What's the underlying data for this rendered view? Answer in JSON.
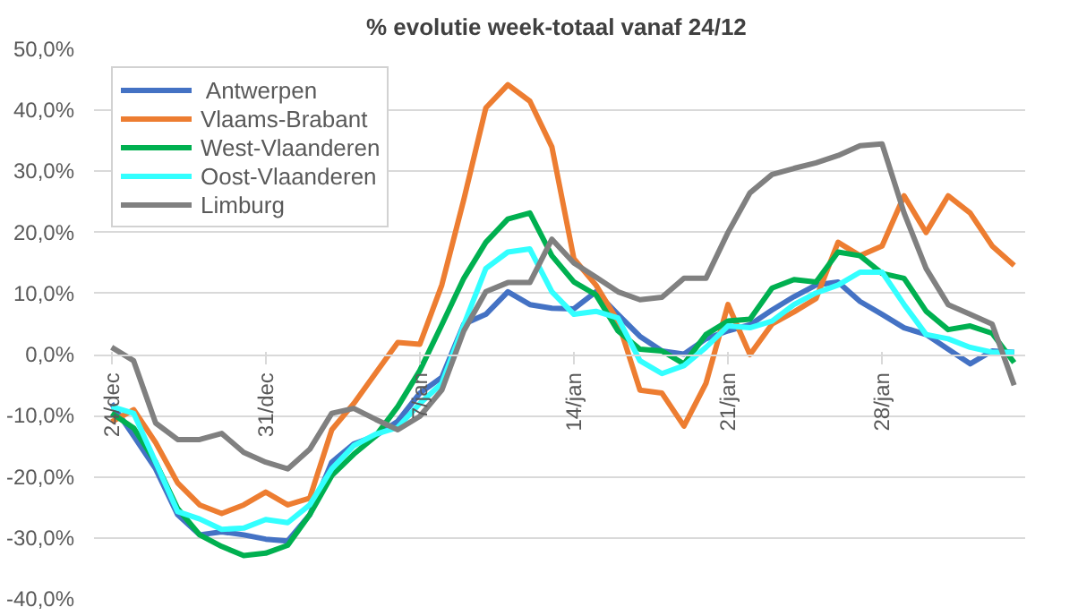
{
  "chart_data": {
    "type": "line",
    "title": "% evolutie week-totaal  vanaf 24/12",
    "categories": [
      "24/dec",
      null,
      null,
      null,
      null,
      null,
      null,
      "31/dec",
      null,
      null,
      null,
      null,
      null,
      null,
      "7/jan",
      null,
      null,
      null,
      null,
      null,
      null,
      "14/jan",
      null,
      null,
      null,
      null,
      null,
      null,
      "21/jan",
      null,
      null,
      null,
      null,
      null,
      null,
      "28/jan",
      null,
      null,
      null,
      null,
      null,
      null
    ],
    "ylim": [
      -40,
      50
    ],
    "yticks": [
      {
        "value": -40,
        "label": "-40,0%"
      },
      {
        "value": -30,
        "label": "-30,0%"
      },
      {
        "value": -20,
        "label": "-20,0%"
      },
      {
        "value": -10,
        "label": "-10,0%"
      },
      {
        "value": 0,
        "label": "0,0%"
      },
      {
        "value": 10,
        "label": "10,0%"
      },
      {
        "value": 20,
        "label": "20,0%"
      },
      {
        "value": 30,
        "label": "30,0%"
      },
      {
        "value": 40,
        "label": "40,0%"
      },
      {
        "value": 50,
        "label": "50,0%"
      }
    ],
    "grid": "y",
    "legend": "top left",
    "marker": "none",
    "line_style": "solid",
    "series": [
      {
        "name": " Antwerpen",
        "color": "#4472c4",
        "values": [
          -8,
          -13.3,
          -18.7,
          -26.2,
          -29.5,
          -29,
          -29.5,
          -30.2,
          -30.5,
          -26.2,
          -17.6,
          -14.6,
          -13.3,
          -10.9,
          -6.3,
          -3.7,
          5,
          6.6,
          10.3,
          8.2,
          7.6,
          7.5,
          10.3,
          6.6,
          3,
          0.6,
          0.1,
          2.6,
          3.9,
          4.9,
          7.3,
          9.5,
          11.4,
          11.9,
          8.7,
          6.6,
          4.4,
          3.3,
          0.9,
          -1.5,
          0.6,
          0.4
        ]
      },
      {
        "name": "Vlaams-Brabant",
        "color": "#ed7d31",
        "values": [
          -11,
          -9,
          -14.4,
          -21,
          -24.6,
          -26,
          -24.6,
          -22.5,
          -24.6,
          -23.5,
          -12.3,
          -8,
          -3,
          2,
          1.7,
          11.4,
          25.4,
          40.4,
          44.2,
          41.5,
          34,
          15.7,
          11.4,
          5.5,
          -5.8,
          -6.3,
          -11.7,
          -4.7,
          8.2,
          0,
          5,
          7,
          9.2,
          18.4,
          16.2,
          17.8,
          26,
          20,
          26,
          23.2,
          17.8,
          14.6
        ]
      },
      {
        "name": "West-Vlaanderen",
        "color": "#00b050",
        "values": [
          -9.6,
          -12,
          -17.6,
          -25.2,
          -29.5,
          -31.4,
          -32.9,
          -32.5,
          -31.2,
          -26.2,
          -19.8,
          -16.3,
          -13.3,
          -8.5,
          -2.6,
          4.9,
          12.5,
          18.4,
          22.2,
          23.2,
          16.2,
          11.9,
          9.8,
          3.9,
          0.9,
          0.6,
          -1.5,
          3.3,
          5.5,
          5.8,
          10.9,
          12.3,
          11.9,
          16.8,
          16.2,
          13.3,
          12.5,
          7.1,
          4.1,
          4.7,
          3.5,
          -1.3
        ]
      },
      {
        "name": "Oost-Vlaanderen",
        "color": "#33ffff",
        "values": [
          -8.5,
          -9.6,
          -17.6,
          -25.7,
          -26.9,
          -28.6,
          -28.4,
          -27,
          -27.5,
          -24.6,
          -18.7,
          -14.9,
          -13,
          -11.9,
          -8,
          -4.7,
          4.9,
          14.1,
          16.8,
          17.3,
          10.3,
          6.6,
          7.1,
          6,
          -1,
          -3.1,
          -1.8,
          1.2,
          4.7,
          4.4,
          5.5,
          8.2,
          10.1,
          11.4,
          13.5,
          13.5,
          8.2,
          3.3,
          2.6,
          1.2,
          0.4,
          0.4
        ]
      },
      {
        "name": "Limburg",
        "color": "#808080",
        "values": [
          1.2,
          -1,
          -11.2,
          -13.9,
          -13.9,
          -12.9,
          -16,
          -17.6,
          -18.7,
          -15.5,
          -9.6,
          -8.8,
          -10.6,
          -12.3,
          -10.1,
          -5.8,
          3.9,
          10.3,
          11.8,
          11.8,
          18.9,
          15,
          12.7,
          10.3,
          9,
          9.4,
          12.5,
          12.5,
          20,
          26.5,
          29.5,
          30.5,
          31.4,
          32.6,
          34.2,
          34.5,
          23.2,
          14.1,
          8.2,
          6.6,
          5,
          -5
        ]
      }
    ]
  }
}
